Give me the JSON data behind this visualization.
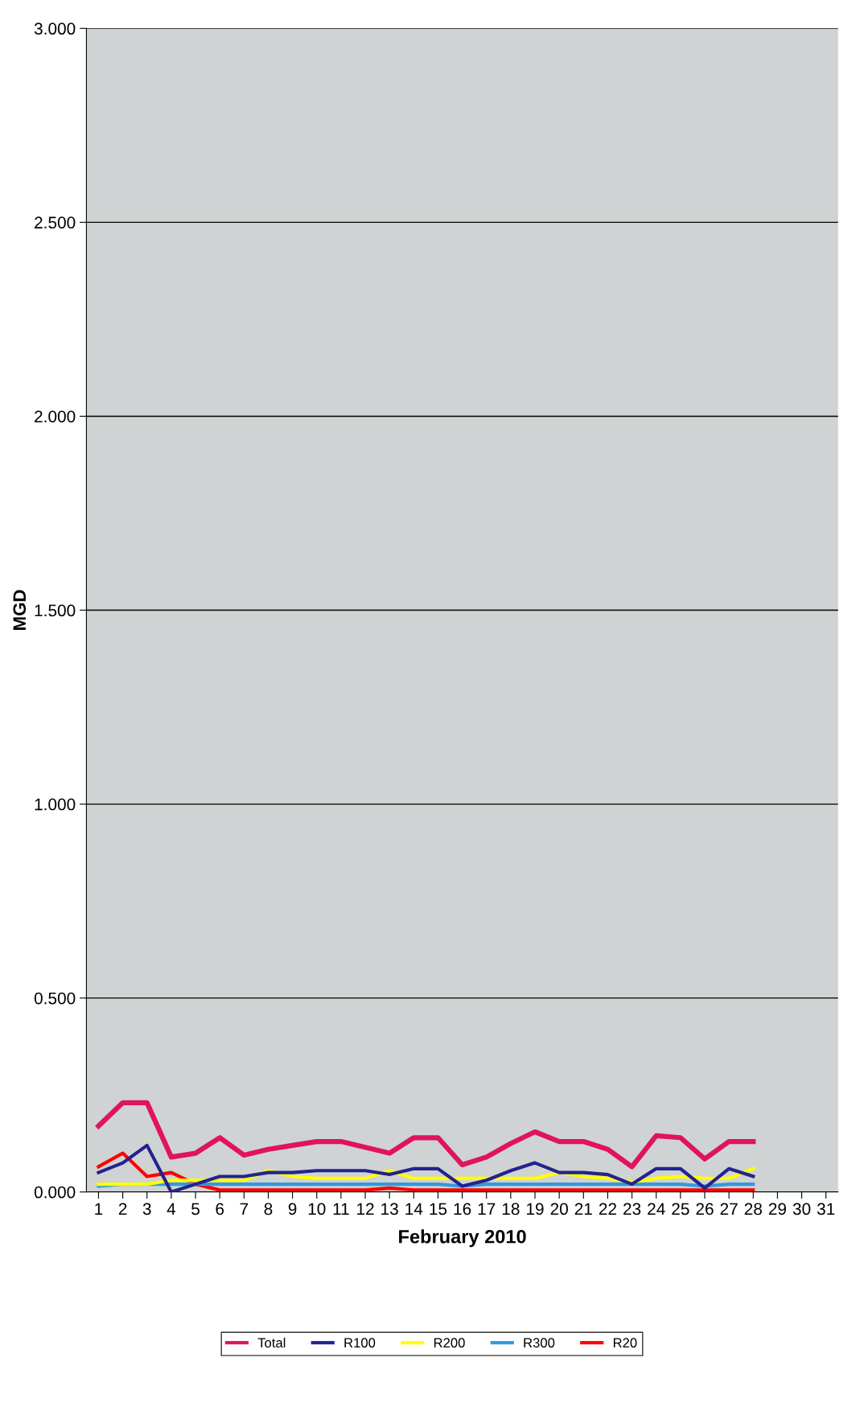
{
  "chart_data": {
    "type": "line",
    "xlabel": "February 2010",
    "ylabel": "MGD",
    "x": [
      1,
      2,
      3,
      4,
      5,
      6,
      7,
      8,
      9,
      10,
      11,
      12,
      13,
      14,
      15,
      16,
      17,
      18,
      19,
      20,
      21,
      22,
      23,
      24,
      25,
      26,
      27,
      28
    ],
    "series": [
      {
        "name": "Total",
        "color": "#e0135f",
        "values": [
          0.17,
          0.23,
          0.23,
          0.09,
          0.1,
          0.14,
          0.095,
          0.11,
          0.12,
          0.13,
          0.13,
          0.115,
          0.1,
          0.14,
          0.14,
          0.07,
          0.09,
          0.125,
          0.155,
          0.13,
          0.13,
          0.11,
          0.065,
          0.145,
          0.14,
          0.085,
          0.13,
          0.13
        ]
      },
      {
        "name": "R100",
        "color": "#23238e",
        "values": [
          0.05,
          0.075,
          0.12,
          0.0,
          0.02,
          0.04,
          0.04,
          0.05,
          0.05,
          0.055,
          0.055,
          0.055,
          0.045,
          0.06,
          0.06,
          0.015,
          0.03,
          0.055,
          0.075,
          0.05,
          0.05,
          0.045,
          0.02,
          0.06,
          0.06,
          0.01,
          0.06,
          0.04
        ]
      },
      {
        "name": "R200",
        "color": "#ffff00",
        "values": [
          0.02,
          0.02,
          0.02,
          0.03,
          0.03,
          0.03,
          0.03,
          0.055,
          0.04,
          0.035,
          0.035,
          0.035,
          0.055,
          0.035,
          0.035,
          0.035,
          0.035,
          0.035,
          0.035,
          0.05,
          0.04,
          0.035,
          0.025,
          0.035,
          0.04,
          0.035,
          0.035,
          0.06
        ]
      },
      {
        "name": "R300",
        "color": "#3399dd",
        "values": [
          0.015,
          0.02,
          0.02,
          0.02,
          0.02,
          0.02,
          0.02,
          0.02,
          0.02,
          0.02,
          0.02,
          0.02,
          0.02,
          0.02,
          0.02,
          0.015,
          0.02,
          0.02,
          0.02,
          0.02,
          0.02,
          0.02,
          0.02,
          0.02,
          0.02,
          0.015,
          0.02,
          0.02
        ]
      },
      {
        "name": "R20",
        "color": "#ff0000",
        "values": [
          0.065,
          0.1,
          0.04,
          0.05,
          0.02,
          0.005,
          0.005,
          0.005,
          0.005,
          0.005,
          0.005,
          0.005,
          0.01,
          0.005,
          0.005,
          0.005,
          0.005,
          0.005,
          0.005,
          0.005,
          0.005,
          0.005,
          0.005,
          0.005,
          0.005,
          0.005,
          0.005,
          0.005
        ]
      }
    ],
    "xlim": [
      0.5,
      31.5
    ],
    "xticks": [
      1,
      2,
      3,
      4,
      5,
      6,
      7,
      8,
      9,
      10,
      11,
      12,
      13,
      14,
      15,
      16,
      17,
      18,
      19,
      20,
      21,
      22,
      23,
      24,
      25,
      26,
      27,
      28,
      29,
      30,
      31
    ],
    "ylim": [
      0,
      3
    ],
    "yticks": [
      {
        "value": 0,
        "label": "0.000"
      },
      {
        "value": 0.5,
        "label": "0.500"
      },
      {
        "value": 1,
        "label": "1.000"
      },
      {
        "value": 1.5,
        "label": "1.500"
      },
      {
        "value": 2,
        "label": "2.000"
      },
      {
        "value": 2.5,
        "label": "2.500"
      },
      {
        "value": 3,
        "label": "3.000"
      }
    ],
    "grid": "y",
    "legend": "bottom",
    "marker": "none",
    "line_style": "solid"
  }
}
